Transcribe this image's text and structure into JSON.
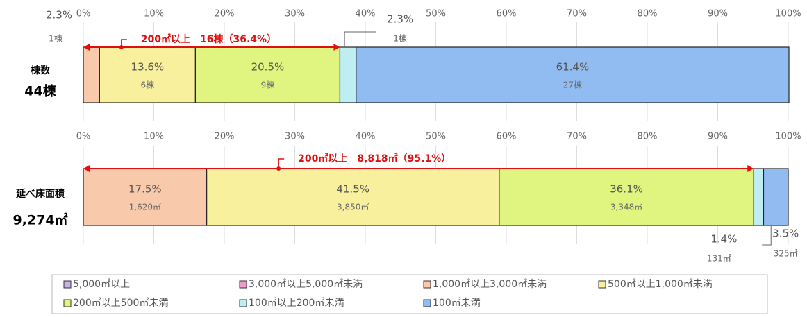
{
  "chart_data": {
    "type": "bar",
    "orientation": "horizontal",
    "stacked": true,
    "categories": [
      "棟数",
      "延べ床面積"
    ],
    "totals": [
      "44棟",
      "9,274㎡"
    ],
    "xlim": [
      0,
      100
    ],
    "xticks": [
      {
        "value": 0,
        "label": "0%"
      },
      {
        "value": 10,
        "label": "10%"
      },
      {
        "value": 20,
        "label": "20%"
      },
      {
        "value": 30,
        "label": "30%"
      },
      {
        "value": 40,
        "label": "40%"
      },
      {
        "value": 50,
        "label": "50%"
      },
      {
        "value": 60,
        "label": "60%"
      },
      {
        "value": 70,
        "label": "70%"
      },
      {
        "value": 80,
        "label": "80%"
      },
      {
        "value": 90,
        "label": "90%"
      },
      {
        "value": 100,
        "label": "100%"
      }
    ],
    "grid": true,
    "legend": "bottom",
    "series": [
      {
        "name": "5,000㎡以上",
        "color": "#c9b3e6",
        "values": [
          0,
          0
        ],
        "value_labels": [
          null,
          null
        ],
        "sub_labels": [
          null,
          null
        ]
      },
      {
        "name": "3,000㎡以上5,000㎡未満",
        "color": "#f09bc9",
        "values": [
          0,
          0
        ],
        "value_labels": [
          null,
          null
        ],
        "sub_labels": [
          null,
          null
        ]
      },
      {
        "name": "1,000㎡以上3,000㎡未満",
        "color": "#f8c9ab",
        "values": [
          2.3,
          17.5
        ],
        "value_labels": [
          "2.3%",
          "17.5%"
        ],
        "sub_labels": [
          "1棟",
          "1,620㎡"
        ]
      },
      {
        "name": "500㎡以上1,000㎡未満",
        "color": "#f8f09c",
        "values": [
          13.6,
          41.5
        ],
        "value_labels": [
          "13.6%",
          "41.5%"
        ],
        "sub_labels": [
          "6棟",
          "3,850㎡"
        ]
      },
      {
        "name": "200㎡以上500㎡未満",
        "color": "#e0f57f",
        "values": [
          20.5,
          36.1
        ],
        "value_labels": [
          "20.5%",
          "36.1%"
        ],
        "sub_labels": [
          "9棟",
          "3,348㎡"
        ]
      },
      {
        "name": "100㎡以上200㎡未満",
        "color": "#bfeef2",
        "values": [
          2.3,
          1.4
        ],
        "value_labels": [
          "2.3%",
          "1.4%"
        ],
        "sub_labels": [
          "1棟",
          "131㎡"
        ]
      },
      {
        "name": "100㎡未満",
        "color": "#91bcf2",
        "values": [
          61.4,
          3.5
        ],
        "value_labels": [
          "61.4%",
          "3.5%"
        ],
        "sub_labels": [
          "27棟",
          "325㎡"
        ]
      }
    ],
    "annotations": [
      {
        "text": "200㎡以上　16棟（36.4%）",
        "from": 0,
        "to": 36.4
      },
      {
        "text": "200㎡以上　8,818㎡（95.1%）",
        "from": 0,
        "to": 95.1
      }
    ]
  }
}
